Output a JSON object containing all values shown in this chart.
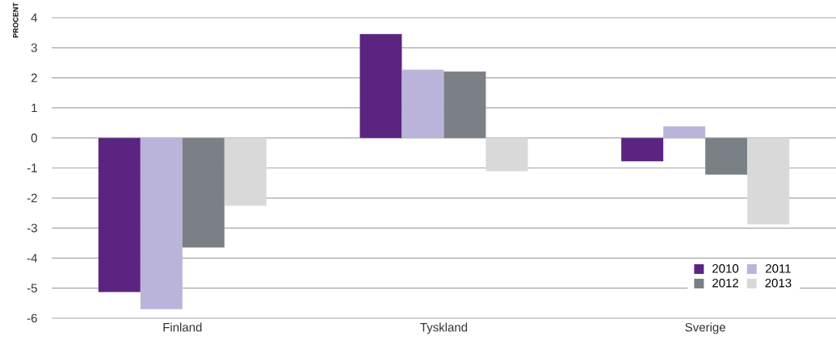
{
  "chart_data": {
    "type": "bar",
    "ylabel": "PROCENT",
    "categories": [
      "Finland",
      "Tyskland",
      "Sverige"
    ],
    "series": [
      {
        "name": "2010",
        "color": "#5c2481",
        "values": [
          -5.13,
          3.46,
          -0.78
        ]
      },
      {
        "name": "2011",
        "color": "#bab4da",
        "values": [
          -5.7,
          2.27,
          0.39
        ]
      },
      {
        "name": "2012",
        "color": "#7a8085",
        "values": [
          -3.65,
          2.21,
          -1.22
        ]
      },
      {
        "name": "2013",
        "color": "#d9d9d9",
        "values": [
          -2.26,
          -1.11,
          -2.88
        ]
      }
    ],
    "ylim": [
      -6,
      4
    ],
    "yticks": [
      -6,
      -5,
      -4,
      -3,
      -2,
      -1,
      0,
      1,
      2,
      3,
      4
    ],
    "grid": "y",
    "legend": "bottom right"
  }
}
